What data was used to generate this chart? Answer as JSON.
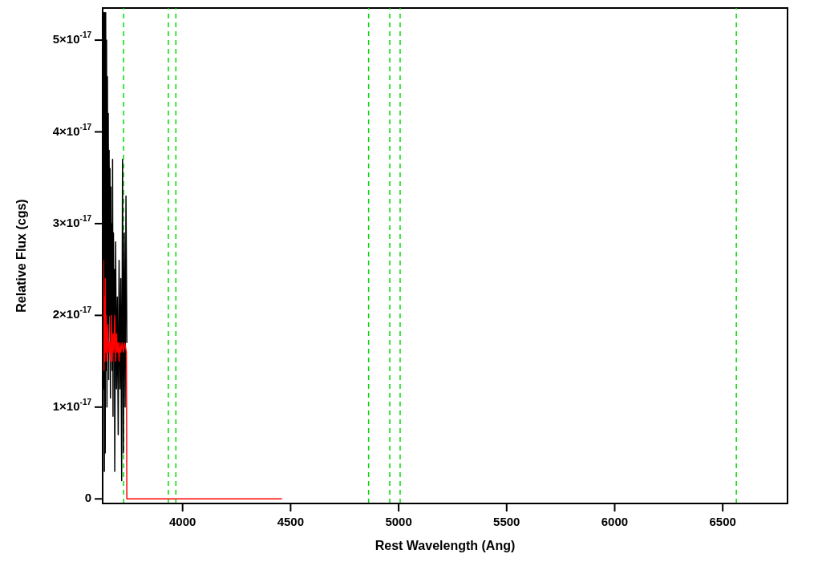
{
  "chart_data": {
    "type": "line",
    "xlabel": "Rest Wavelength (Ang)",
    "ylabel": "Relative Flux (cgs)",
    "xlim": [
      3630,
      6800
    ],
    "xticks": [
      4000,
      4500,
      5000,
      5500,
      6000,
      6500
    ],
    "ylim": [
      -5e-19,
      5.35e-17
    ],
    "yticks": [
      0,
      {
        "value": 1e-17,
        "label": "1×10$^{-17}$"
      },
      {
        "value": 2e-17,
        "label": "2×10$^{-17}$"
      },
      {
        "value": 3e-17,
        "label": "3×10$^{-17}$"
      },
      {
        "value": 4e-17,
        "label": "4×10$^{-17}$"
      },
      {
        "value": 5e-17,
        "label": "5×10$^{-17}$"
      }
    ],
    "marker": "none",
    "line_style": "solid",
    "series": [
      {
        "color": "#000000",
        "x": [
          3632,
          3634,
          3636,
          3638,
          3640,
          3642,
          3644,
          3646,
          3648,
          3650,
          3652,
          3654,
          3656,
          3658,
          3660,
          3662,
          3664,
          3666,
          3668,
          3670,
          3672,
          3674,
          3676,
          3678,
          3680,
          3682,
          3684,
          3686,
          3690,
          3694,
          3698,
          3702,
          3706,
          3710,
          3714,
          3718,
          3722,
          3726,
          3730,
          3734,
          3738,
          3742
        ],
        "values": [
          5.3e-17,
          1.2e-17,
          5.3e-17,
          3e-18,
          5.3e-17,
          5e-18,
          5.3e-17,
          1.4e-17,
          5e-17,
          1e-17,
          4.6e-17,
          1.6e-17,
          4.2e-17,
          1.3e-17,
          3.8e-17,
          2e-17,
          3.6e-17,
          1.1e-17,
          3.4e-17,
          1.8e-17,
          3e-17,
          1.4e-17,
          3.7e-17,
          9e-18,
          2.9e-17,
          1.6e-17,
          2.5e-17,
          3e-18,
          2.8e-17,
          1.2e-17,
          2.2e-17,
          7e-18,
          2.6e-17,
          1.2e-17,
          2.4e-17,
          2e-18,
          3.7e-17,
          5e-18,
          2.9e-17,
          1e-17,
          3.3e-17,
          1.7e-17
        ]
      },
      {
        "color": "#ff0000",
        "x": [
          3632,
          3634,
          3636,
          3638,
          3640,
          3642,
          3644,
          3646,
          3650,
          3654,
          3658,
          3662,
          3666,
          3670,
          3674,
          3678,
          3682,
          3686,
          3690,
          3694,
          3698,
          3702,
          3706,
          3710,
          3714,
          3720,
          3726,
          3732,
          3740,
          3742,
          3800,
          4000,
          4460
        ],
        "values": [
          1.6e-17,
          2.6e-17,
          1.4e-17,
          2.2e-17,
          1.5e-17,
          2.4e-17,
          1.6e-17,
          2e-17,
          1.5e-17,
          1.9e-17,
          1.6e-17,
          1.7e-17,
          1.5e-17,
          2e-17,
          1.5e-17,
          1.8e-17,
          1.6e-17,
          2e-17,
          1.5e-17,
          1.8e-17,
          1.6e-17,
          1.7e-17,
          1.5e-17,
          1.7e-17,
          1.6e-17,
          1.7e-17,
          1.6e-17,
          1.7e-17,
          1.6e-17,
          0,
          0,
          0,
          0
        ]
      }
    ],
    "ref_lines": [
      {
        "axis": "x",
        "value": 3727,
        "color": "#00dd00",
        "line_style": "dashed"
      },
      {
        "axis": "x",
        "value": 3934,
        "color": "#00dd00",
        "line_style": "dashed"
      },
      {
        "axis": "x",
        "value": 3969,
        "color": "#00dd00",
        "line_style": "dashed"
      },
      {
        "axis": "x",
        "value": 4861,
        "color": "#00dd00",
        "line_style": "dashed"
      },
      {
        "axis": "x",
        "value": 4959,
        "color": "#00dd00",
        "line_style": "dashed"
      },
      {
        "axis": "x",
        "value": 5007,
        "color": "#00dd00",
        "line_style": "dashed"
      },
      {
        "axis": "x",
        "value": 6563,
        "color": "#00dd00",
        "line_style": "dashed"
      }
    ]
  }
}
